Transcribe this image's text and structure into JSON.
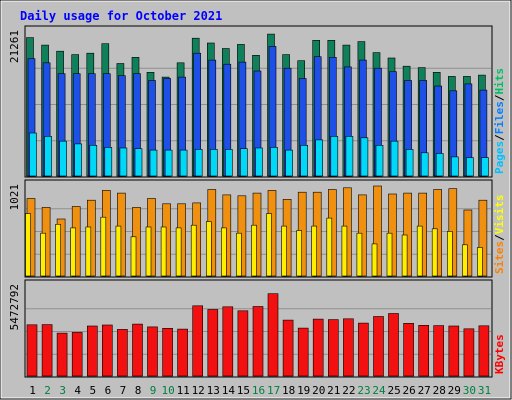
{
  "chart_data": {
    "type": "bar",
    "title": "Daily usage for October 2021",
    "categories": [
      "1",
      "2",
      "3",
      "4",
      "5",
      "6",
      "7",
      "8",
      "9",
      "10",
      "11",
      "12",
      "13",
      "14",
      "15",
      "16",
      "17",
      "18",
      "19",
      "20",
      "21",
      "22",
      "23",
      "24",
      "25",
      "26",
      "27",
      "28",
      "29",
      "30",
      "31"
    ],
    "weekend_days": [
      "2",
      "3",
      "9",
      "10",
      "16",
      "17",
      "23",
      "24",
      "30",
      "31"
    ],
    "panels": [
      {
        "id": "pages-files-hits",
        "max_label": "21261",
        "ymax": 21261,
        "legend": [
          {
            "text": "Pages",
            "color": "#00c0ff"
          },
          {
            "text": "/",
            "color": "#000000"
          },
          {
            "text": "Files",
            "color": "#0080ff"
          },
          {
            "text": "/",
            "color": "#000000"
          },
          {
            "text": "Hits",
            "color": "#00c060"
          }
        ],
        "series": [
          {
            "name": "Hits",
            "color": "#10805a",
            "values": [
              20300,
              19200,
              18300,
              17800,
              18000,
              19400,
              16500,
              17400,
              15200,
              14500,
              16600,
              20200,
              19500,
              18700,
              19300,
              17700,
              20800,
              17800,
              16900,
              19900,
              19900,
              19200,
              19700,
              18100,
              17300,
              16100,
              15900,
              15200,
              14600,
              14600,
              14800
            ]
          },
          {
            "name": "Files",
            "color": "#1e4fe6",
            "values": [
              17200,
              16600,
              15000,
              15000,
              15000,
              15000,
              14700,
              15000,
              14000,
              14300,
              14500,
              18000,
              17000,
              16400,
              16700,
              15400,
              19000,
              15800,
              14300,
              17500,
              17400,
              16000,
              17000,
              15800,
              15300,
              14000,
              14000,
              13200,
              12500,
              13500,
              12600
            ]
          },
          {
            "name": "Pages",
            "color": "#00d8f8",
            "values": [
              6300,
              5800,
              5100,
              4700,
              4500,
              4200,
              4100,
              4000,
              3800,
              3800,
              3800,
              3900,
              3900,
              3900,
              4000,
              4100,
              4200,
              3800,
              4500,
              5300,
              5800,
              5800,
              5600,
              4500,
              5100,
              3900,
              3400,
              3300,
              2800,
              2700,
              2700
            ]
          }
        ]
      },
      {
        "id": "visits-sites",
        "max_label": "1021",
        "ymax": 1021,
        "legend": [
          {
            "text": "Sites",
            "color": "#ff8000"
          },
          {
            "text": "/",
            "color": "#000000"
          },
          {
            "text": "Visits",
            "color": "#ffff00"
          }
        ],
        "series": [
          {
            "name": "Visits",
            "color": "#f09010",
            "values": [
              870,
              770,
              640,
              780,
              850,
              960,
              930,
              770,
              870,
              810,
              810,
              820,
              970,
              910,
              900,
              930,
              960,
              860,
              940,
              940,
              970,
              990,
              910,
              1010,
              920,
              930,
              930,
              970,
              980,
              740,
              850
            ]
          },
          {
            "name": "Sites",
            "color": "#ffee00",
            "values": [
              700,
              480,
              580,
              540,
              550,
              660,
              560,
              440,
              550,
              550,
              540,
              570,
              610,
              540,
              480,
              570,
              700,
              560,
              510,
              560,
              650,
              560,
              480,
              360,
              480,
              460,
              560,
              530,
              500,
              350,
              320
            ]
          }
        ]
      },
      {
        "id": "kbytes",
        "max_label": "5472792",
        "ymax": 5472792,
        "legend": [
          {
            "text": "KBytes",
            "color": "#ff0000"
          }
        ],
        "series": [
          {
            "name": "KBytes",
            "color": "#f21010",
            "values": [
              3080000,
              3090000,
              2580000,
              2620000,
              3010000,
              3070000,
              2800000,
              3120000,
              2950000,
              2870000,
              2820000,
              4220000,
              4000000,
              4160000,
              3920000,
              4180000,
              4950000,
              3360000,
              2880000,
              3420000,
              3390000,
              3440000,
              3180000,
              3580000,
              3760000,
              3170000,
              3050000,
              3030000,
              3010000,
              2840000,
              3020000
            ]
          }
        ]
      }
    ]
  }
}
